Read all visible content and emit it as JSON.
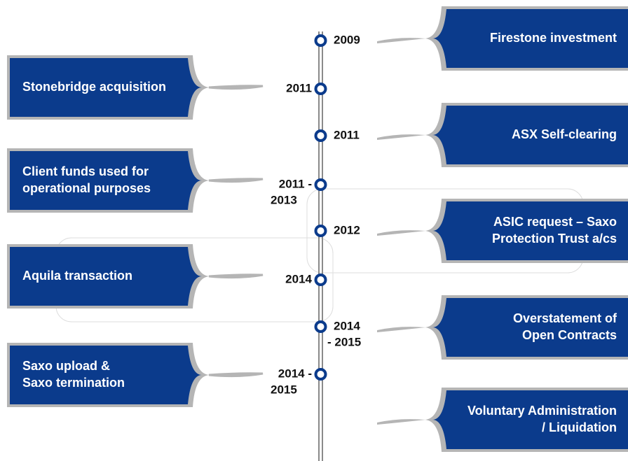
{
  "events": [
    {
      "side": "right",
      "date": [
        "2009"
      ],
      "label": [
        "Firestone investment"
      ]
    },
    {
      "side": "left",
      "date": [
        "2011"
      ],
      "label": [
        "Stonebridge acquisition"
      ]
    },
    {
      "side": "right",
      "date": [
        "2011"
      ],
      "label": [
        "ASX Self-clearing"
      ]
    },
    {
      "side": "left",
      "date": [
        "2011 -",
        "2013"
      ],
      "label": [
        "Client funds used for",
        "operational purposes"
      ]
    },
    {
      "side": "right",
      "date": [
        "2012"
      ],
      "label": [
        "ASIC request – Saxo",
        "Protection Trust a/cs"
      ]
    },
    {
      "side": "left",
      "date": [
        "2014"
      ],
      "label": [
        "Aquila transaction"
      ]
    },
    {
      "side": "right",
      "date": [
        "2014",
        "- 2015"
      ],
      "label": [
        "Overstatement of",
        "Open Contracts"
      ]
    },
    {
      "side": "left",
      "date": [
        "2014 -",
        "2015"
      ],
      "label": [
        "Saxo upload &",
        "Saxo termination"
      ]
    },
    {
      "side": "right",
      "label": [
        "Voluntary Administration",
        " / Liquidation"
      ]
    }
  ]
}
